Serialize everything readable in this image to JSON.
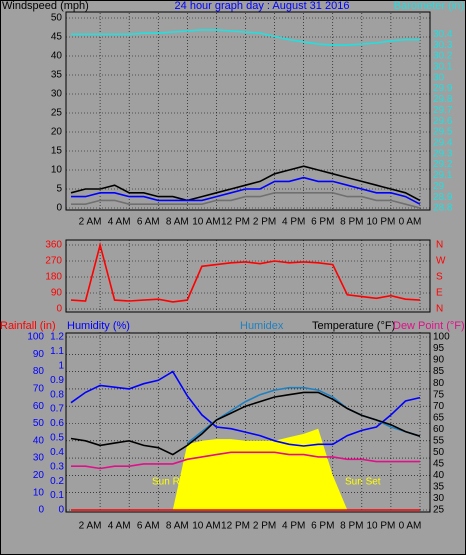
{
  "chart_data": [
    {
      "type": "line",
      "title": "24 hour graph day : August 31 2016",
      "ylabel": "Windspeed (mph)",
      "y2label": "Barometer (in)",
      "x": [
        0,
        1,
        2,
        3,
        4,
        5,
        6,
        7,
        8,
        9,
        10,
        11,
        12,
        13,
        14,
        15,
        16,
        17,
        18,
        19,
        20,
        21,
        22,
        23,
        24
      ],
      "xlim": [
        0,
        24
      ],
      "xticks": [
        {
          "value": 2,
          "label": "2 AM"
        },
        {
          "value": 4,
          "label": "4 AM"
        },
        {
          "value": 6,
          "label": "6 AM"
        },
        {
          "value": 8,
          "label": "8 AM"
        },
        {
          "value": 10,
          "label": "10 AM"
        },
        {
          "value": 12,
          "label": "12 PM"
        },
        {
          "value": 14,
          "label": "2 PM"
        },
        {
          "value": 16,
          "label": "4 PM"
        },
        {
          "value": 18,
          "label": "6 PM"
        },
        {
          "value": 20,
          "label": "8 PM"
        },
        {
          "value": 22,
          "label": "10 PM"
        },
        {
          "value": 24,
          "label": "0 AM"
        }
      ],
      "ylim": [
        0,
        50
      ],
      "yticks": [
        0,
        5,
        10,
        15,
        20,
        25,
        30,
        35,
        40,
        45,
        50
      ],
      "y2lim": [
        28.8,
        30.55
      ],
      "y2ticks": [
        28.8,
        28.9,
        29,
        29.1,
        29.2,
        29.3,
        29.4,
        29.5,
        29.6,
        29.7,
        29.8,
        29.9,
        30,
        30.1,
        30.2,
        30.3,
        30.4
      ],
      "grid": true,
      "series": [
        {
          "color": "#000000",
          "values": [
            4,
            5,
            5,
            6,
            4,
            4,
            3,
            3,
            2,
            3,
            4,
            5,
            6,
            7,
            9,
            10,
            11,
            10,
            9,
            8,
            7,
            6,
            5,
            4,
            2
          ]
        },
        {
          "color": "#0000ff",
          "values": [
            3,
            3,
            4,
            4,
            3,
            3,
            2,
            2,
            2,
            2,
            3,
            4,
            5,
            5,
            7,
            7,
            8,
            7,
            7,
            6,
            5,
            4,
            4,
            3,
            1
          ]
        },
        {
          "color": "#707070",
          "values": [
            1,
            1,
            2,
            2,
            1,
            1,
            1,
            1,
            1,
            1,
            2,
            2,
            3,
            3,
            4,
            4,
            4,
            4,
            4,
            3,
            3,
            2,
            2,
            1,
            0
          ]
        },
        {
          "color": "#20e0e0",
          "axis": "y2",
          "values": [
            30.4,
            30.4,
            30.4,
            30.4,
            30.4,
            30.41,
            30.41,
            30.42,
            30.43,
            30.44,
            30.44,
            30.43,
            30.42,
            30.41,
            30.38,
            30.35,
            30.33,
            30.31,
            30.3,
            30.3,
            30.31,
            30.32,
            30.34,
            30.35,
            30.35
          ]
        }
      ]
    },
    {
      "type": "line",
      "x": [
        0,
        1,
        2,
        3,
        4,
        5,
        6,
        7,
        8,
        9,
        10,
        11,
        12,
        13,
        14,
        15,
        16,
        17,
        18,
        19,
        20,
        21,
        22,
        23,
        24
      ],
      "xlim": [
        0,
        24
      ],
      "ylim": [
        0,
        360
      ],
      "yticks": [
        0,
        90,
        180,
        270,
        360
      ],
      "y2lim": [
        0,
        360
      ],
      "y2ticks": [
        {
          "value": 0,
          "label": "N"
        },
        {
          "value": 90,
          "label": "E"
        },
        {
          "value": 180,
          "label": "S"
        },
        {
          "value": 270,
          "label": "W"
        },
        {
          "value": 360,
          "label": "N"
        }
      ],
      "grid": true,
      "series": [
        {
          "color": "#ff0000",
          "values": [
            50,
            45,
            360,
            50,
            45,
            50,
            55,
            40,
            50,
            240,
            250,
            260,
            265,
            255,
            270,
            260,
            265,
            260,
            250,
            80,
            70,
            60,
            75,
            55,
            50
          ]
        }
      ]
    },
    {
      "type": "line",
      "ylabel": "Humidity (%)",
      "y2label": "Temperature (°F)",
      "y3label": "Rainfall (in)",
      "annotations": [
        "Sun Rise",
        "Sun Set"
      ],
      "x": [
        0,
        1,
        2,
        3,
        4,
        5,
        6,
        7,
        8,
        9,
        10,
        11,
        12,
        13,
        14,
        15,
        16,
        17,
        18,
        19,
        20,
        21,
        22,
        23,
        24
      ],
      "xlim": [
        0,
        24
      ],
      "xticks": [
        {
          "value": 2,
          "label": "2 AM"
        },
        {
          "value": 4,
          "label": "4 AM"
        },
        {
          "value": 6,
          "label": "6 AM"
        },
        {
          "value": 8,
          "label": "8 AM"
        },
        {
          "value": 10,
          "label": "10 AM"
        },
        {
          "value": 12,
          "label": "12 PM"
        },
        {
          "value": 14,
          "label": "2 PM"
        },
        {
          "value": 16,
          "label": "4 PM"
        },
        {
          "value": 18,
          "label": "6 PM"
        },
        {
          "value": 20,
          "label": "8 PM"
        },
        {
          "value": 22,
          "label": "10 PM"
        },
        {
          "value": 24,
          "label": "0 AM"
        }
      ],
      "ylim": [
        0,
        100
      ],
      "yticks": [
        0,
        10,
        20,
        30,
        40,
        50,
        60,
        70,
        80,
        90,
        100
      ],
      "y2lim": [
        25,
        100
      ],
      "y2ticks": [
        25,
        30,
        35,
        40,
        45,
        50,
        55,
        60,
        65,
        70,
        75,
        80,
        85,
        90,
        95,
        100
      ],
      "y3lim": [
        0,
        1.2
      ],
      "y3ticks": [
        0,
        0.1,
        0.2,
        0.3,
        0.4,
        0.5,
        0.6,
        0.7,
        0.8,
        0.9,
        1,
        1.1,
        1.2
      ],
      "grid": true,
      "series": [
        {
          "color": "#ffff00",
          "fill": true,
          "values": [
            0,
            0,
            0,
            0,
            0,
            0,
            0,
            0,
            38,
            40,
            41,
            41,
            40,
            40,
            40,
            42,
            44,
            47,
            20,
            0,
            0,
            0,
            0,
            0,
            0
          ]
        },
        {
          "name": "Rainfall (in)",
          "color": "#ff0000",
          "axis": "y3",
          "values": [
            0,
            0,
            0,
            0,
            0,
            0,
            0,
            0,
            0,
            0,
            0,
            0,
            0,
            0,
            0,
            0,
            0,
            0,
            0,
            0,
            0,
            0,
            0,
            0,
            0
          ]
        },
        {
          "name": "Humidity (%)",
          "color": "#0000ff",
          "values": [
            62,
            68,
            72,
            71,
            70,
            73,
            75,
            80,
            66,
            55,
            48,
            47,
            45,
            43,
            40,
            38,
            37,
            38,
            38,
            43,
            46,
            48,
            55,
            63,
            65
          ]
        },
        {
          "name": "Humidex",
          "color": "#2080c0",
          "axis": "y2",
          "values": [
            null,
            null,
            null,
            null,
            null,
            null,
            null,
            null,
            54,
            59,
            64,
            68,
            72,
            75,
            77,
            78,
            78,
            77,
            74,
            69,
            66,
            64,
            61,
            59,
            57
          ]
        },
        {
          "name": "Temperature (°F)",
          "color": "#000000",
          "axis": "y2",
          "values": [
            56,
            55,
            53,
            54,
            55,
            53,
            52,
            49,
            53,
            58,
            64,
            67,
            70,
            72,
            74,
            75,
            76,
            76,
            73,
            69,
            66,
            64,
            62,
            59,
            57
          ]
        },
        {
          "name": "Dew Point (°F)",
          "color": "#e0108a",
          "axis": "y2",
          "values": [
            44,
            44,
            43,
            44,
            44,
            45,
            45,
            45,
            47,
            48,
            49,
            50,
            50,
            50,
            50,
            49,
            49,
            48,
            48,
            47,
            47,
            46,
            46,
            46,
            46
          ]
        }
      ]
    }
  ]
}
